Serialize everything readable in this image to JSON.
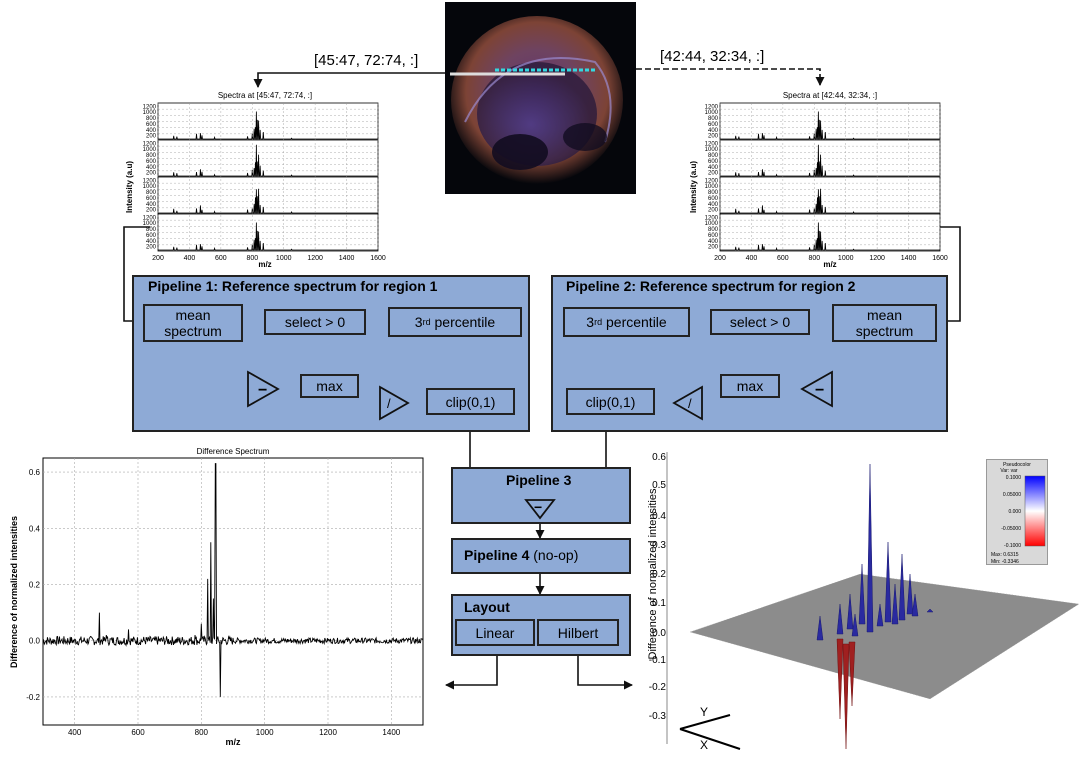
{
  "slice_labels": {
    "left": "[45:47, 72:74, :]",
    "right": "[42:44, 32:34, :]"
  },
  "spectra_left": {
    "title": "Spectra at [45:47, 72:74, :]",
    "ylabel": "Intensity (a.u)",
    "xlabel": "m/z",
    "yticks": [
      "1200",
      "1000",
      "800",
      "600",
      "400",
      "200"
    ],
    "xticks": [
      "200",
      "400",
      "600",
      "800",
      "1000",
      "1200",
      "1400",
      "1600"
    ]
  },
  "spectra_right": {
    "title": "Spectra at [42:44, 32:34, :]",
    "ylabel": "Intensity (a.u)",
    "xlabel": "m/z",
    "yticks": [
      "1200",
      "1000",
      "800",
      "600",
      "400",
      "200"
    ],
    "xticks": [
      "200",
      "400",
      "600",
      "800",
      "1000",
      "1200",
      "1400",
      "1600"
    ]
  },
  "pipeline1": {
    "title": "Pipeline 1:   Reference spectrum for region 1",
    "mean": "mean spectrum",
    "select": "select > 0",
    "pct_num": "3",
    "pct_sup": "rd",
    "pct_word": "percentile",
    "max": "max",
    "clip": "clip(0,1)",
    "minus": "−",
    "div": "/"
  },
  "pipeline2": {
    "title": "Pipeline 2:  Reference spectrum for region 2",
    "mean": "mean spectrum",
    "select": "select > 0",
    "pct_num": "3",
    "pct_sup": "rd",
    "pct_word": "percentile",
    "max": "max",
    "clip": "clip(0,1)",
    "minus": "−",
    "div": "/"
  },
  "pipeline3": {
    "title": "Pipeline 3",
    "minus": "−"
  },
  "pipeline4": {
    "title": "Pipeline 4",
    "note": "(no-op)"
  },
  "layout": {
    "title": "Layout",
    "linear": "Linear",
    "hilbert": "Hilbert"
  },
  "difference_chart": {
    "title": "Difference Spectrum",
    "xlabel": "m/z",
    "ylabel": "Difference of normalized intensities",
    "xticks": [
      "400",
      "600",
      "800",
      "1000",
      "1200",
      "1400"
    ],
    "yticks": [
      "0.6",
      "0.4",
      "0.2",
      "0.0",
      "-0.2"
    ]
  },
  "surface_plot": {
    "zlabel": "Difference of normalized intensities",
    "zticks": [
      "0.6",
      "0.5",
      "0.4",
      "0.3",
      "0.2",
      "0.1",
      "0.0",
      "-0.1",
      "-0.2",
      "-0.3"
    ],
    "axis_y": "Y",
    "axis_x": "X"
  },
  "legend": {
    "title": "Pseudocolor",
    "var": "Var: var",
    "ticks": [
      "0.1000",
      "0.05000",
      "0.000",
      "-0.05000",
      "-0.1000"
    ],
    "max": "Max: 0.6315",
    "min": "Min: -0.3346"
  },
  "chart_data": [
    {
      "type": "line",
      "title": "Difference Spectrum",
      "xlabel": "m/z",
      "ylabel": "Difference of normalized intensities",
      "xlim": [
        300,
        1500
      ],
      "ylim": [
        -0.3,
        0.65
      ],
      "grid": true,
      "series": [
        {
          "x": [
            300,
            400,
            478,
            500,
            570,
            650,
            780,
            800,
            820,
            830,
            838,
            845,
            860,
            900,
            1000,
            1200,
            1500
          ],
          "y": [
            0.0,
            0.005,
            0.1,
            0.02,
            0.04,
            0.01,
            0.02,
            0.06,
            0.22,
            0.35,
            0.15,
            0.63,
            -0.2,
            0.01,
            0.0,
            0.0,
            0.0
          ]
        }
      ]
    }
  ]
}
